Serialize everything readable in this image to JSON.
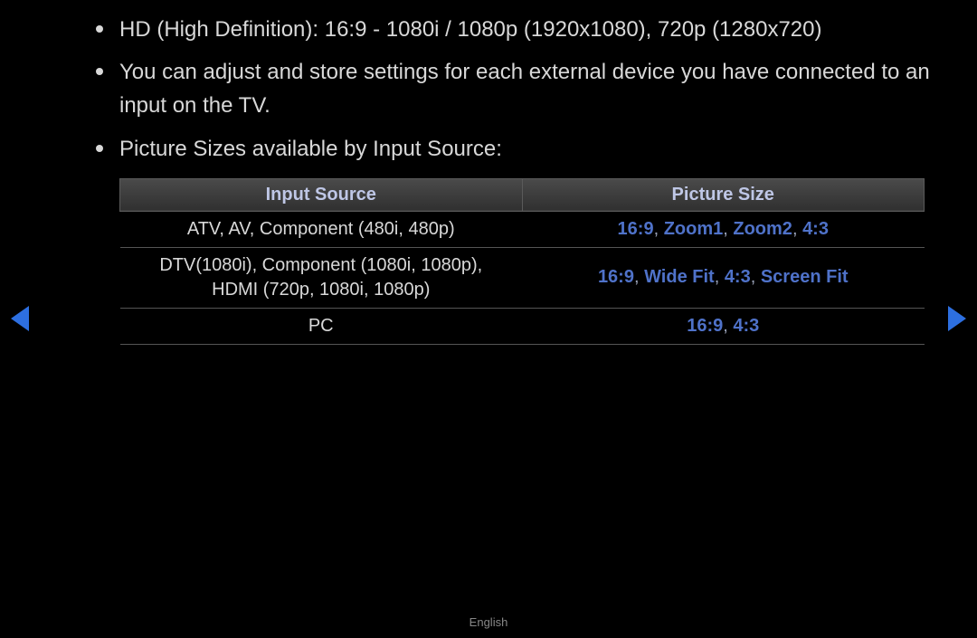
{
  "bullets": [
    "HD (High Definition): 16:9 - 1080i / 1080p (1920x1080), 720p (1280x720)",
    "You can adjust and store settings for each external device you have connected to an input on the TV.",
    "Picture Sizes available by Input Source:"
  ],
  "table": {
    "headers": [
      "Input Source",
      "Picture Size"
    ],
    "rows": [
      {
        "source": "ATV, AV, Component (480i, 480p)",
        "sizes": [
          "16:9",
          "Zoom1",
          "Zoom2",
          "4:3"
        ]
      },
      {
        "source": "DTV(1080i), Component (1080i, 1080p),\nHDMI (720p, 1080i, 1080p)",
        "sizes": [
          "16:9",
          "Wide Fit",
          "4:3",
          "Screen Fit"
        ]
      },
      {
        "source": "PC",
        "sizes": [
          "16:9",
          "4:3"
        ]
      }
    ]
  },
  "footer": "English",
  "colors": {
    "background": "#000000",
    "text": "#d8d8d8",
    "header_text": "#bfc7e6",
    "header_bg_top": "#4a4a4a",
    "header_bg_bottom": "#303030",
    "border": "#5a5a5a",
    "row_border": "#555555",
    "size_text": "#4f72c9",
    "separator": "#9aa2b8",
    "arrow": "#2d6fe0",
    "footer_text": "#888888"
  },
  "typography": {
    "bullet_fontsize": 24,
    "header_fontsize": 20,
    "cell_fontsize": 20,
    "footer_fontsize": 13
  }
}
